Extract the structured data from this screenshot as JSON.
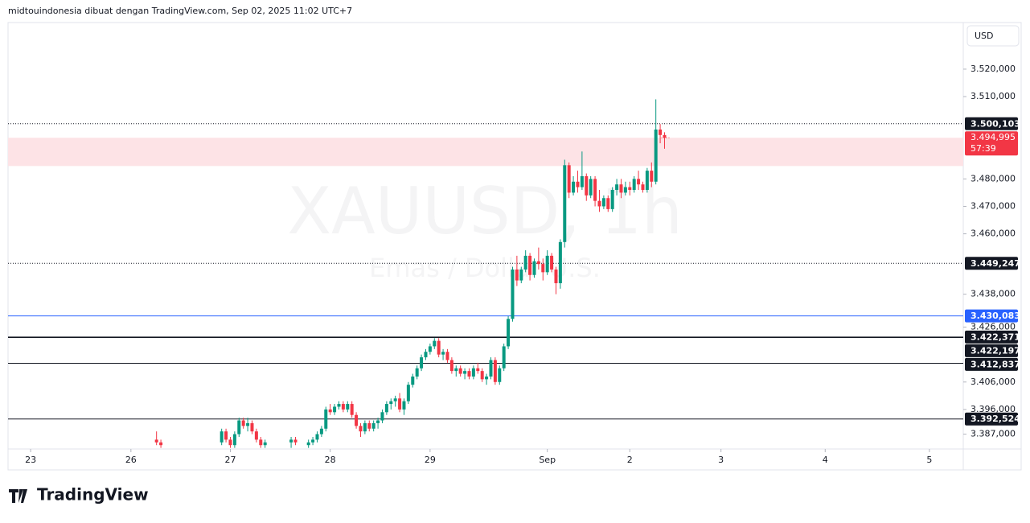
{
  "chart_data": {
    "type": "candlestick",
    "header": "midtouindonesia dibuat dengan TradingView.com, Sep 02, 2025 11:02 UTC+7",
    "watermark": "XAUUSD, 1h",
    "watermark_subtitle": "Emas / Dollar U.S.",
    "currency": "USD",
    "brand": "TradingView",
    "up_color": "#089981",
    "down_color": "#f23645",
    "xlim": [
      -5.2,
      214.8
    ],
    "ylim": [
      3381.6,
      3536.4
    ],
    "xticks": [
      {
        "value": 0,
        "label": "23"
      },
      {
        "value": 23.1,
        "label": "26"
      },
      {
        "value": 46,
        "label": "27"
      },
      {
        "value": 69,
        "label": "28"
      },
      {
        "value": 92,
        "label": "29"
      },
      {
        "value": 119,
        "label": "Sep"
      },
      {
        "value": 138,
        "label": "2"
      },
      {
        "value": 159,
        "label": "3"
      },
      {
        "value": 183,
        "label": "4"
      },
      {
        "value": 207,
        "label": "5"
      }
    ],
    "yticks": [
      {
        "value": 3520,
        "label": "3.520,000"
      },
      {
        "value": 3510,
        "label": "3.510,000"
      },
      {
        "value": 3480,
        "label": "3.480,000"
      },
      {
        "value": 3470,
        "label": "3.470,000"
      },
      {
        "value": 3460,
        "label": "3.460,000"
      },
      {
        "value": 3438,
        "label": "3.438,000"
      },
      {
        "value": 3426,
        "label": "3.426,000"
      },
      {
        "value": 3406,
        "label": "3.406,000"
      },
      {
        "value": 3396,
        "label": "3.396,000"
      },
      {
        "value": 3387,
        "label": "3.387,000"
      }
    ],
    "zone": {
      "from": 3484.7,
      "to": 3495,
      "color": "#fde3e6"
    },
    "price_lines": [
      {
        "value": 3500.103,
        "label": "3.500,103",
        "color": "#131722",
        "dashed": true
      },
      {
        "value": 3449.247,
        "label": "3.449,247",
        "color": "#131722",
        "dashed": true
      },
      {
        "value": 3430.083,
        "label": "3.430,083",
        "color": "#2962ff",
        "dashed": false
      },
      {
        "value": 3422.371,
        "label": "3.422,371",
        "color": "#131722",
        "dashed": false
      },
      {
        "value": 3422.197,
        "label": "3.422,197",
        "color": "#131722",
        "dashed": false
      },
      {
        "value": 3412.837,
        "label": "3.412,837",
        "color": "#131722",
        "dashed": false
      },
      {
        "value": 3392.524,
        "label": "3.392,524",
        "color": "#131722",
        "dashed": false
      }
    ],
    "last_price": {
      "value": 3494.995,
      "label": "3.494,995",
      "countdown": "57:39",
      "color": "#f23645"
    },
    "x": [
      29,
      30,
      44,
      45,
      46,
      47,
      48,
      49,
      50,
      51,
      52,
      53,
      54,
      60,
      61,
      64,
      65,
      66,
      67,
      68,
      69,
      70,
      71,
      72,
      73,
      74,
      75,
      76,
      77,
      78,
      79,
      80,
      81,
      82,
      83,
      84,
      85,
      86,
      87,
      88,
      89,
      90,
      91,
      92,
      93,
      94,
      95,
      96,
      97,
      98,
      99,
      100,
      101,
      102,
      103,
      104,
      105,
      106,
      107,
      108,
      109,
      110,
      111,
      112,
      113,
      114,
      115,
      116,
      117,
      118,
      119,
      120,
      121,
      122,
      123,
      124,
      125,
      126,
      127,
      128,
      129,
      130,
      131,
      132,
      133,
      134,
      135,
      136,
      137,
      138,
      139,
      140,
      141,
      142,
      143,
      144,
      145,
      146
    ],
    "open": [
      3385,
      3384,
      3384,
      3388,
      3385,
      3383,
      3387,
      3392,
      3390,
      3391,
      3388,
      3385,
      3383,
      3384,
      3385,
      3383,
      3384,
      3385,
      3387,
      3389,
      3396,
      3395,
      3397,
      3398,
      3396,
      3398,
      3394,
      3390,
      3388,
      3391,
      3389,
      3391,
      3392,
      3395,
      3398,
      3399,
      3400,
      3396,
      3399,
      3405,
      3408,
      3411,
      3415,
      3417,
      3419,
      3421,
      3416,
      3417,
      3414,
      3410,
      3411,
      3409,
      3410,
      3408,
      3411,
      3410,
      3407,
      3408,
      3414,
      3406,
      3411,
      3419,
      3429,
      3447,
      3443,
      3447,
      3452,
      3445,
      3450,
      3449,
      3446,
      3452,
      3447,
      3442,
      3457,
      3485,
      3475,
      3479,
      3477,
      3481,
      3474,
      3480,
      3472,
      3470,
      3473,
      3469,
      3476,
      3478,
      3475,
      3477,
      3476,
      3480,
      3478,
      3476,
      3483,
      3479,
      3498,
      3496
    ],
    "high": [
      3388,
      3385,
      3389,
      3389,
      3386,
      3388,
      3393,
      3393,
      3393,
      3392,
      3389,
      3386,
      3385,
      3386,
      3386,
      3385,
      3386,
      3388,
      3390,
      3397,
      3398,
      3398,
      3399,
      3399,
      3399,
      3399,
      3395,
      3391,
      3392,
      3392,
      3392,
      3393,
      3396,
      3399,
      3400,
      3401,
      3402,
      3400,
      3406,
      3409,
      3412,
      3416,
      3418,
      3420,
      3422,
      3422,
      3418,
      3418,
      3415,
      3412,
      3412,
      3411,
      3411,
      3412,
      3413,
      3411,
      3409,
      3415,
      3415,
      3412,
      3420,
      3430,
      3448,
      3452,
      3448,
      3454,
      3453,
      3451,
      3455,
      3451,
      3454,
      3453,
      3448,
      3458,
      3487,
      3486,
      3481,
      3483,
      3490,
      3482,
      3481,
      3481,
      3476,
      3474,
      3474,
      3477,
      3480,
      3480,
      3479,
      3479,
      3481,
      3483,
      3479,
      3484,
      3486,
      3509,
      3500,
      3497
    ],
    "low": [
      3383,
      3382,
      3383,
      3384,
      3382,
      3382,
      3386,
      3389,
      3388,
      3387,
      3384,
      3382,
      3382,
      3382,
      3383,
      3382,
      3383,
      3384,
      3386,
      3388,
      3394,
      3394,
      3396,
      3395,
      3395,
      3393,
      3389,
      3386,
      3387,
      3388,
      3388,
      3389,
      3391,
      3394,
      3396,
      3397,
      3395,
      3394,
      3398,
      3404,
      3407,
      3410,
      3414,
      3416,
      3418,
      3415,
      3414,
      3413,
      3409,
      3408,
      3408,
      3407,
      3407,
      3407,
      3409,
      3406,
      3405,
      3407,
      3405,
      3405,
      3410,
      3418,
      3428,
      3441,
      3442,
      3446,
      3443,
      3444,
      3447,
      3443,
      3445,
      3446,
      3438,
      3440,
      3455,
      3473,
      3474,
      3475,
      3476,
      3472,
      3473,
      3470,
      3468,
      3469,
      3468,
      3468,
      3474,
      3473,
      3474,
      3474,
      3475,
      3476,
      3475,
      3475,
      3477,
      3478,
      3493,
      3491
    ],
    "close": [
      3384,
      3383,
      3388,
      3385,
      3383,
      3387,
      3392,
      3390,
      3391,
      3388,
      3385,
      3383,
      3384,
      3385,
      3384,
      3384,
      3385,
      3387,
      3389,
      3396,
      3395,
      3397,
      3398,
      3396,
      3398,
      3394,
      3390,
      3388,
      3391,
      3389,
      3391,
      3392,
      3395,
      3398,
      3399,
      3400,
      3396,
      3399,
      3405,
      3408,
      3411,
      3415,
      3417,
      3419,
      3421,
      3416,
      3417,
      3414,
      3410,
      3411,
      3409,
      3410,
      3408,
      3411,
      3410,
      3407,
      3408,
      3414,
      3406,
      3411,
      3419,
      3429,
      3447,
      3443,
      3447,
      3452,
      3445,
      3450,
      3449,
      3446,
      3452,
      3447,
      3442,
      3457,
      3485,
      3475,
      3479,
      3477,
      3481,
      3474,
      3480,
      3472,
      3470,
      3473,
      3469,
      3476,
      3478,
      3475,
      3477,
      3476,
      3480,
      3478,
      3476,
      3483,
      3479,
      3498,
      3496,
      3495
    ]
  }
}
